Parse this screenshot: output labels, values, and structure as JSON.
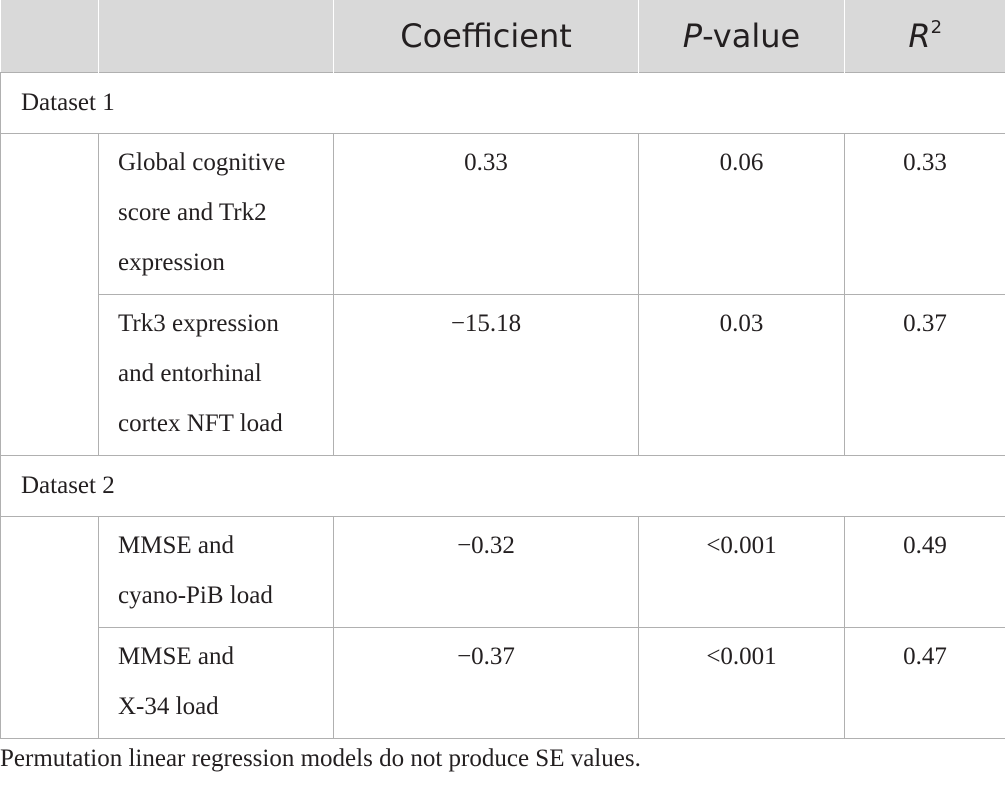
{
  "table": {
    "headers": {
      "coefficient": "Coefficient",
      "pvalue_italic": "P",
      "pvalue_rest": "-value",
      "r2_italic": "R",
      "r2_sup": "2"
    },
    "groups": [
      {
        "label": "Dataset 1",
        "rows": [
          {
            "line1": "Global cognitive",
            "line2": "score and Trk2",
            "line3": "expression",
            "coefficient": "0.33",
            "pvalue": "0.06",
            "r2": "0.33"
          },
          {
            "line1": "Trk3 expression",
            "line2": "and entorhinal",
            "line3": "cortex NFT load",
            "coefficient": "−15.18",
            "pvalue": "0.03",
            "r2": "0.37"
          }
        ]
      },
      {
        "label": "Dataset 2",
        "rows": [
          {
            "line1": "MMSE and",
            "line2": "cyano-PiB load",
            "coefficient": "−0.32",
            "pvalue": "<0.001",
            "r2": "0.49"
          },
          {
            "line1": "MMSE and",
            "line2": "X-34 load",
            "coefficient": "−0.37",
            "pvalue": "<0.001",
            "r2": "0.47"
          }
        ]
      }
    ]
  },
  "footnote": "Permutation linear regression models do not produce SE values."
}
